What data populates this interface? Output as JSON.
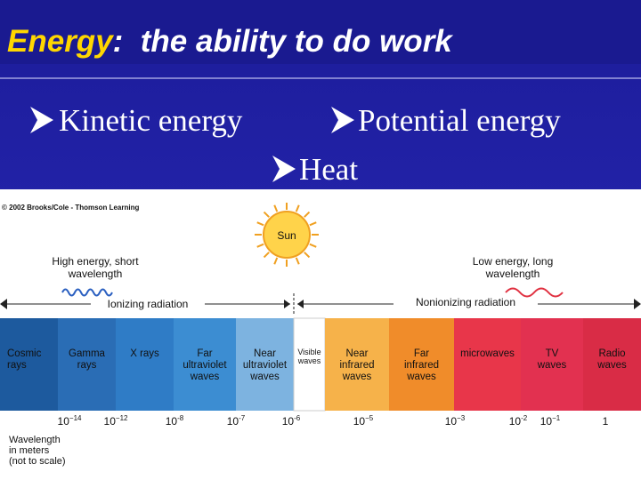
{
  "header": {
    "title_highlight": "Energy",
    "title_rest": ":  the ability to do work"
  },
  "bullets": [
    "Kinetic energy",
    "Potential energy",
    "Heat"
  ],
  "figure": {
    "copyright": "© 2002 Brooks/Cole - Thomson Learning",
    "sun": "Sun",
    "high_energy": [
      "High energy, short",
      "wavelength"
    ],
    "low_energy": [
      "Low energy, long",
      "wavelength"
    ],
    "ionizing": "Ionizing radiation",
    "nonionizing": "Nonionizing radiation",
    "bands": [
      {
        "lines": [
          "Cosmic",
          "rays"
        ]
      },
      {
        "lines": [
          "Gamma",
          "rays"
        ]
      },
      {
        "lines": [
          "X rays"
        ]
      },
      {
        "lines": [
          "Far",
          "ultraviolet",
          "waves"
        ]
      },
      {
        "lines": [
          "Near",
          "ultraviolet",
          "waves"
        ]
      },
      {
        "lines": [
          "Visible",
          "waves"
        ]
      },
      {
        "lines": [
          "Near",
          "infrared",
          "waves"
        ]
      },
      {
        "lines": [
          "Far",
          "infrared",
          "waves"
        ]
      },
      {
        "lines": [
          "microwaves"
        ]
      },
      {
        "lines": [
          "TV",
          "waves"
        ]
      },
      {
        "lines": [
          "Radio",
          "waves"
        ]
      }
    ],
    "ticks": [
      {
        "base": "10",
        "exp": "−14"
      },
      {
        "base": "10",
        "exp": "−12"
      },
      {
        "base": "10",
        "exp": "-8"
      },
      {
        "base": "10",
        "exp": "-7"
      },
      {
        "base": "10",
        "exp": "-6"
      },
      {
        "base": "10",
        "exp": "−5"
      },
      {
        "base": "10",
        "exp": "−3"
      },
      {
        "base": "10",
        "exp": "-2"
      },
      {
        "base": "10",
        "exp": "−1"
      },
      {
        "base": "1"
      }
    ],
    "axis_label": [
      "Wavelength",
      "in meters",
      "(not to scale)"
    ]
  }
}
